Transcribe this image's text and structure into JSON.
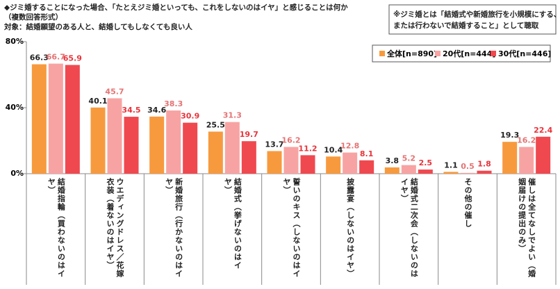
{
  "chart_data": {
    "type": "bar",
    "title_lines": [
      "◆ジミ婚することになった場合、「たとえジミ婚といっても、これをしないのはイヤ」と感じることは何か",
      "（複数回答形式）",
      "対象：結婚願望のある人と、結婚してもしなくても良い人"
    ],
    "note_lines": [
      "※ジミ婚とは「結婚式や新婚旅行を小規模にする、",
      "または行わないで結婚すること」として聴取"
    ],
    "categories": [
      "結婚指輪（買わないのはイヤ）",
      "ウエディングドレス／花嫁衣装（着ないのはイヤ）",
      "新婚旅行（行かないのはイヤ）",
      "結婚式（挙げないのはイヤ）",
      "誓いのキス（しないのはイヤ）",
      "披露宴（しないのはイヤ）",
      "結婚式二次会（しないのはイヤ）",
      "その他の催し",
      "催しは全てなしでよい（婚姻届けの提出のみ）"
    ],
    "series": [
      {
        "name": "全体[n=890]",
        "color": "#f79a3e",
        "label_color": "#222222",
        "values": [
          66.3,
          40.1,
          34.6,
          25.5,
          13.7,
          10.4,
          3.8,
          1.1,
          19.3
        ]
      },
      {
        "name": "20代[n=444]",
        "color": "#f8a3a3",
        "label_color": "#e57373",
        "values": [
          66.7,
          45.7,
          38.3,
          31.3,
          16.2,
          12.8,
          5.2,
          0.5,
          16.2
        ]
      },
      {
        "name": "30代[n=446]",
        "color": "#f0484f",
        "label_color": "#e8333a",
        "values": [
          65.9,
          34.5,
          30.9,
          19.7,
          11.2,
          8.1,
          2.5,
          1.8,
          22.4
        ]
      }
    ],
    "ylim": [
      0,
      80
    ],
    "yticks": [
      {
        "value": 0,
        "label": "0%"
      },
      {
        "value": 40,
        "label": "40%"
      },
      {
        "value": 80,
        "label": "80%"
      }
    ],
    "grid": false
  }
}
